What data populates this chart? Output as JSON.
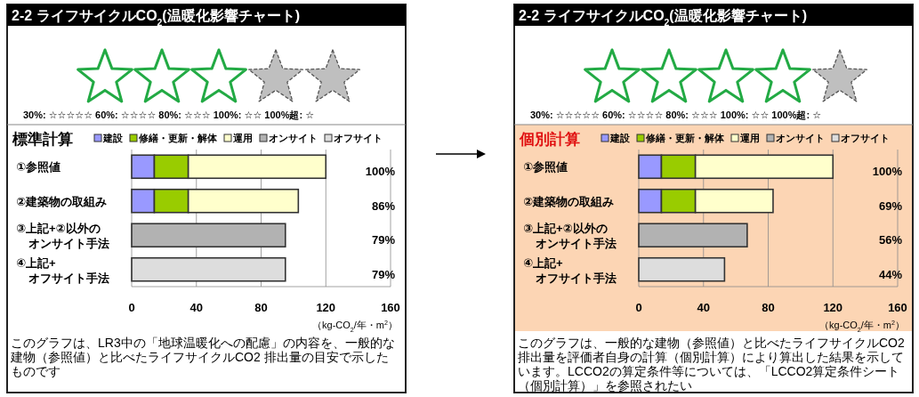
{
  "chart_data": [
    {
      "type": "bar",
      "orientation": "horizontal",
      "stacked": true,
      "title": "2-2 ライフサイクルCO$_{2}$(温暖化影響チャート)",
      "subtitle": "標準計算",
      "categories": [
        "①参照値",
        "②建築物の取組み",
        "③上記+②以外のオンサイト手法",
        "④上記+オフサイト手法"
      ],
      "series": [
        {
          "name": "建設",
          "color": "#9999ff",
          "values": [
            14,
            14,
            null,
            null
          ]
        },
        {
          "name": "修繕・更新・解体",
          "color": "#99cc00",
          "values": [
            21,
            21,
            null,
            null
          ]
        },
        {
          "name": "運用",
          "color": "#ffffcc",
          "values": [
            85,
            68,
            null,
            null
          ]
        },
        {
          "name": "オンサイト",
          "color": "#b2b2b2",
          "values": [
            null,
            null,
            95,
            null
          ]
        },
        {
          "name": "オフサイト",
          "color": "#dddddd",
          "values": [
            null,
            null,
            null,
            95
          ]
        }
      ],
      "xlabel": "（kg-CO$_{2}$/年・m$^{2}$）",
      "xlim": [
        0,
        160
      ],
      "xticks": [
        0,
        40,
        80,
        120,
        160
      ],
      "grid": "x",
      "legend": "top",
      "annotations": [
        "30%: ☆☆☆☆☆  60%: ☆☆☆☆  80%: ☆☆☆  100%: ☆☆  100%超: ☆",
        "このグラフは、LR3中の「地球温暖化への配慮」の内容を、一般的な建物（参照値）と比べたライフサイクルCO2 排出量の目安で示したものです",
        "100%",
        "86%",
        "79%",
        "79%"
      ]
    },
    {
      "type": "bar",
      "orientation": "horizontal",
      "stacked": true,
      "title": "2-2 ライフサイクルCO$_{2}$(温暖化影響チャート)",
      "subtitle": "個別計算",
      "categories": [
        "①参照値",
        "②建築物の取組み",
        "③上記+②以外のオンサイト手法",
        "④上記+オフサイト手法"
      ],
      "series": [
        {
          "name": "建設",
          "color": "#9999ff",
          "values": [
            14,
            14,
            null,
            null
          ]
        },
        {
          "name": "修繕・更新・解体",
          "color": "#99cc00",
          "values": [
            21,
            21,
            null,
            null
          ]
        },
        {
          "name": "運用",
          "color": "#ffffcc",
          "values": [
            85,
            48,
            null,
            null
          ]
        },
        {
          "name": "オンサイト",
          "color": "#b2b2b2",
          "values": [
            null,
            null,
            67,
            null
          ]
        },
        {
          "name": "オフサイト",
          "color": "#dddddd",
          "values": [
            null,
            null,
            null,
            53
          ]
        }
      ],
      "xlabel": "（kg-CO$_{2}$/年・m$^{2}$）",
      "xlim": [
        0,
        160
      ],
      "xticks": [
        0,
        40,
        80,
        120,
        160
      ],
      "grid": "x",
      "legend": "top",
      "annotations": [
        "30%: ☆☆☆☆☆  60%: ☆☆☆☆  80%: ☆☆☆  100%: ☆☆  100%超: ☆",
        "このグラフは、一般的な建物（参照値）と比べたライフサイクルCO2 排出量を評価者自身の計算（個別計算）により算出した結果を示しています。LCCO2の算定条件等については、「LCCO2算定条件シート（個別計算）」を参照されたい",
        "100%",
        "69%",
        "56%",
        "44%"
      ]
    }
  ]
}
